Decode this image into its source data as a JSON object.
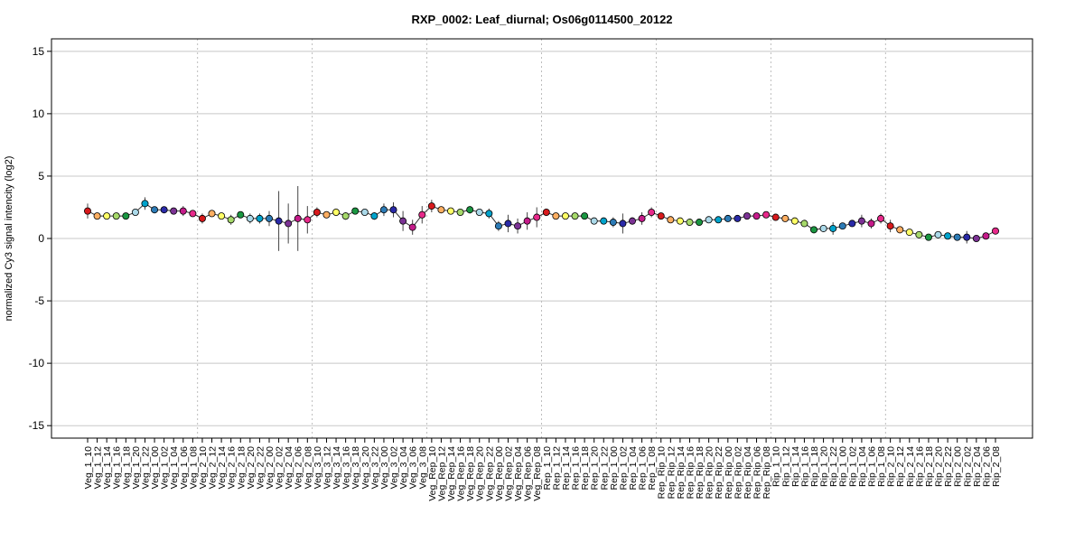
{
  "chart_data": {
    "type": "line",
    "title": "RXP_0002: Leaf_diurnal; Os06g0114500_20122",
    "xlabel": "",
    "ylabel": "normalized Cy3 signal intencity (log2)",
    "ylim": [
      -16,
      16
    ],
    "yticks": [
      15,
      10,
      5,
      0,
      -5,
      -10,
      -15
    ],
    "ytick_labels": [
      "15",
      "10",
      "5",
      "0",
      "-5",
      "-10",
      "-15"
    ],
    "grid": "horizontal",
    "group_separators_after": [
      11,
      23,
      35,
      47,
      59,
      71,
      83
    ],
    "categories": [
      "Veg_1_10",
      "Veg_1_12",
      "Veg_1_14",
      "Veg_1_16",
      "Veg_1_18",
      "Veg_1_20",
      "Veg_1_22",
      "Veg_1_00",
      "Veg_1_02",
      "Veg_1_04",
      "Veg_1_06",
      "Veg_1_08",
      "Veg_2_10",
      "Veg_2_12",
      "Veg_2_14",
      "Veg_2_16",
      "Veg_2_18",
      "Veg_2_20",
      "Veg_2_22",
      "Veg_2_00",
      "Veg_2_02",
      "Veg_2_04",
      "Veg_2_06",
      "Veg_2_08",
      "Veg_3_10",
      "Veg_3_12",
      "Veg_3_14",
      "Veg_3_16",
      "Veg_3_18",
      "Veg_3_20",
      "Veg_3_22",
      "Veg_3_00",
      "Veg_3_02",
      "Veg_3_04",
      "Veg_3_06",
      "Veg_3_08",
      "Veg_Rep_10",
      "Veg_Rep_12",
      "Veg_Rep_14",
      "Veg_Rep_16",
      "Veg_Rep_18",
      "Veg_Rep_20",
      "Veg_Rep_22",
      "Veg_Rep_00",
      "Veg_Rep_02",
      "Veg_Rep_04",
      "Veg_Rep_06",
      "Veg_Rep_08",
      "Rep_1_10",
      "Rep_1_12",
      "Rep_1_14",
      "Rep_1_16",
      "Rep_1_18",
      "Rep_1_20",
      "Rep_1_22",
      "Rep_1_00",
      "Rep_1_02",
      "Rep_1_04",
      "Rep_1_06",
      "Rep_1_08",
      "Rep_Rip_10",
      "Rep_Rip_12",
      "Rep_Rip_14",
      "Rep_Rip_16",
      "Rep_Rip_18",
      "Rep_Rip_20",
      "Rep_Rip_22",
      "Rep_Rip_00",
      "Rep_Rip_02",
      "Rep_Rip_04",
      "Rep_Rip_06",
      "Rep_Rip_08",
      "Rip_1_10",
      "Rip_1_12",
      "Rip_1_14",
      "Rip_1_16",
      "Rip_1_18",
      "Rip_1_20",
      "Rip_1_22",
      "Rip_1_00",
      "Rip_1_02",
      "Rip_1_04",
      "Rip_1_06",
      "Rip_1_08",
      "Rip_2_10",
      "Rip_2_12",
      "Rip_2_14",
      "Rip_2_16",
      "Rip_2_18",
      "Rip_2_20",
      "Rip_2_22",
      "Rip_2_00",
      "Rip_2_02",
      "Rip_2_04",
      "Rip_2_06",
      "Rip_2_08"
    ],
    "values": [
      2.2,
      1.8,
      1.8,
      1.8,
      1.8,
      2.1,
      2.8,
      2.3,
      2.3,
      2.2,
      2.2,
      2.0,
      1.6,
      2.0,
      1.8,
      1.5,
      1.9,
      1.6,
      1.6,
      1.6,
      1.4,
      1.2,
      1.6,
      1.5,
      2.1,
      1.9,
      2.1,
      1.8,
      2.2,
      2.1,
      1.8,
      2.3,
      2.3,
      1.4,
      0.9,
      1.9,
      2.6,
      2.3,
      2.2,
      2.1,
      2.3,
      2.1,
      2.0,
      1.0,
      1.2,
      1.0,
      1.4,
      1.7,
      2.1,
      1.8,
      1.8,
      1.8,
      1.8,
      1.4,
      1.4,
      1.3,
      1.2,
      1.4,
      1.6,
      2.1,
      1.8,
      1.5,
      1.4,
      1.3,
      1.3,
      1.5,
      1.5,
      1.6,
      1.6,
      1.8,
      1.8,
      1.9,
      1.7,
      1.6,
      1.4,
      1.2,
      0.7,
      0.8,
      0.8,
      1.0,
      1.2,
      1.4,
      1.2,
      1.6,
      1.0,
      0.7,
      0.5,
      0.3,
      0.1,
      0.3,
      0.2,
      0.1,
      0.1,
      0.0,
      0.2,
      0.6
    ],
    "errors": [
      0.6,
      0.2,
      0.15,
      0.15,
      0.2,
      0.2,
      0.5,
      0.2,
      0.2,
      0.25,
      0.4,
      0.15,
      0.4,
      0.2,
      0.15,
      0.4,
      0.2,
      0.4,
      0.4,
      0.6,
      2.4,
      1.6,
      2.6,
      1.1,
      0.4,
      0.2,
      0.3,
      0.3,
      0.2,
      0.2,
      0.3,
      0.5,
      0.6,
      0.8,
      0.6,
      0.7,
      0.5,
      0.2,
      0.2,
      0.2,
      0.3,
      0.2,
      0.4,
      0.4,
      0.7,
      0.6,
      0.7,
      0.8,
      0.3,
      0.2,
      0.2,
      0.2,
      0.2,
      0.2,
      0.2,
      0.4,
      0.8,
      0.3,
      0.5,
      0.4,
      0.2,
      0.2,
      0.1,
      0.1,
      0.1,
      0.2,
      0.2,
      0.15,
      0.15,
      0.2,
      0.2,
      0.15,
      0.2,
      0.2,
      0.2,
      0.2,
      0.15,
      0.15,
      0.5,
      0.2,
      0.2,
      0.5,
      0.4,
      0.4,
      0.5,
      0.2,
      0.2,
      0.15,
      0.15,
      0.2,
      0.2,
      0.15,
      0.5,
      0.15,
      0.2,
      0.2
    ],
    "group_colors": [
      "#d7191c",
      "#fdae61",
      "#ffff66",
      "#a6d96a",
      "#1a9641",
      "#abd9e9",
      "#00a3cc",
      "#2c7bb6",
      "#2a2aa8",
      "#7b3294",
      "#c51b8a",
      "#e7298a"
    ]
  }
}
